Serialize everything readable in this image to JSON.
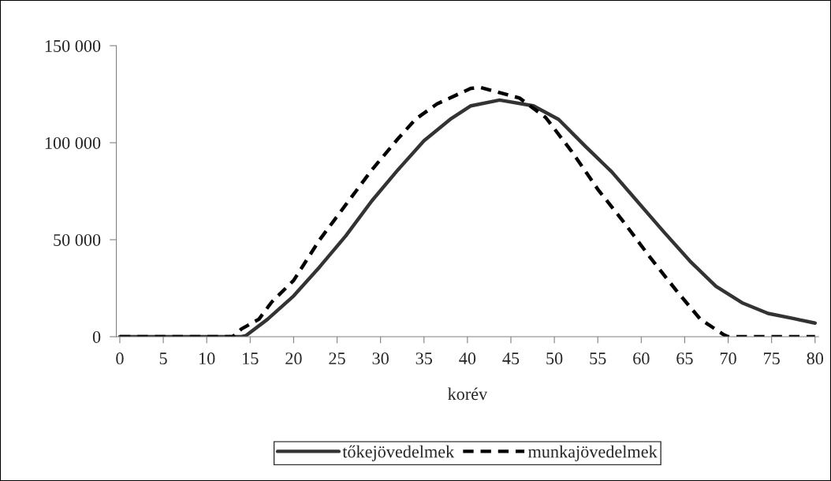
{
  "chart_data": {
    "type": "line",
    "xlabel": "korév",
    "series": [
      {
        "name": "tőkejövedelmek",
        "color": "#333333",
        "line_style": "solid",
        "x": [
          0,
          14,
          14.5,
          17,
          20,
          23,
          26,
          29,
          32,
          35,
          38,
          40.4,
          43.7,
          47.6,
          50.5,
          53.6,
          56.6,
          59.5,
          62.6,
          65.6,
          68.6,
          71.6,
          74.6,
          77.6,
          80
        ],
        "values": [
          0,
          0,
          500,
          9000,
          21000,
          36000,
          52000,
          70000,
          86000,
          101000,
          112000,
          119000,
          122000,
          119000,
          112000,
          98000,
          85000,
          70000,
          54000,
          39000,
          26000,
          17500,
          12000,
          9300,
          7000
        ]
      },
      {
        "name": "munkajövedelmek",
        "color": "#000000",
        "line_style": "dashed",
        "x": [
          0,
          13,
          14,
          16,
          17.5,
          20,
          23,
          26,
          29,
          32,
          34,
          36.5,
          40.4,
          41.5,
          46,
          49,
          52,
          55,
          58,
          61,
          64,
          66.8,
          69.5,
          70,
          80
        ],
        "values": [
          0,
          0,
          4000,
          9000,
          18000,
          29000,
          50000,
          68000,
          86000,
          102000,
          112000,
          120000,
          128000,
          128500,
          123000,
          113000,
          95500,
          76000,
          59000,
          41000,
          24000,
          9000,
          1000,
          0,
          0
        ]
      }
    ],
    "xlim": [
      -0.4,
      80.4
    ],
    "xticks": [
      0,
      5,
      10,
      15,
      20,
      25,
      30,
      35,
      40,
      45,
      50,
      55,
      60,
      65,
      70,
      75,
      80
    ],
    "ylim": [
      0,
      150000
    ],
    "yticks": [
      {
        "value": 0,
        "label": "0"
      },
      {
        "value": 50000,
        "label": "50 000"
      },
      {
        "value": 100000,
        "label": "100 000"
      },
      {
        "value": 150000,
        "label": "150 000"
      }
    ],
    "grid": false,
    "legend": "bottom",
    "marker": "none"
  }
}
